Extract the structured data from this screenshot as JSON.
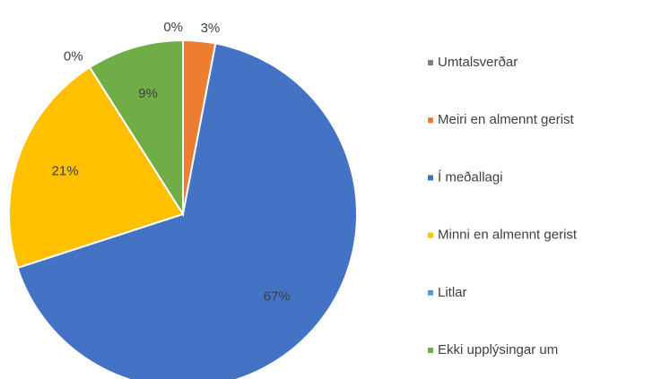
{
  "chart_data": {
    "type": "pie",
    "categories": [
      "Umtalsverðar",
      "Meiri en almennt gerist",
      "Í meðallagi",
      "Minni en almennt gerist",
      "Litlar",
      "Ekki upplýsingar um"
    ],
    "values": [
      0,
      3,
      67,
      21,
      0,
      9
    ],
    "value_labels": [
      "0%",
      "3%",
      "67%",
      "21%",
      "0%",
      "9%"
    ],
    "colors": [
      "#7f7f7f",
      "#ed7d31",
      "#4472c4",
      "#ffc000",
      "#5b9bd5",
      "#70ad47"
    ],
    "legend": "right"
  }
}
